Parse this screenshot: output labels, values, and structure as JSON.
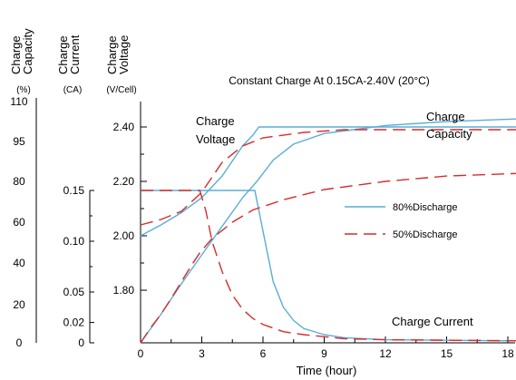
{
  "chart_data": {
    "type": "line",
    "title": "Constant Charge At 0.15CA-2.40V  (20°C)",
    "xlabel": "Time (hour)",
    "x_ticks": [
      0,
      3,
      6,
      9,
      12,
      15,
      18
    ],
    "xlim": [
      0,
      18.5
    ],
    "axes": [
      {
        "id": "capacity",
        "title": "Charge Capacity",
        "unit": "(%)",
        "ticks": [
          0,
          20,
          40,
          60,
          80,
          95,
          110
        ],
        "range": [
          0,
          110
        ]
      },
      {
        "id": "current",
        "title": "Charge Current",
        "unit": "(CA)",
        "ticks": [
          "0",
          "0.02",
          "0.05",
          "0.10",
          "0.15"
        ],
        "tick_values": [
          0,
          0.02,
          0.05,
          0.1,
          0.15
        ],
        "range": [
          0,
          0.15
        ]
      },
      {
        "id": "voltage",
        "title": "Charge Voltage",
        "unit": "(V/Cell)",
        "ticks": [
          "1.80",
          "2.00",
          "2.20",
          "2.40"
        ],
        "tick_values": [
          1.8,
          2.0,
          2.2,
          2.4
        ]
      }
    ],
    "annotations": [
      "Charge Voltage",
      "Charge Capacity",
      "Charge Current"
    ],
    "legend": {
      "position": "right",
      "entries": [
        {
          "label": "80%Discharge",
          "color": "#5aaed6",
          "style": "solid"
        },
        {
          "label": "50%Discharge",
          "color": "#d62b2b",
          "style": "dashed"
        }
      ]
    },
    "series": [
      {
        "legend": 0,
        "quantity": "voltage",
        "points": [
          [
            0,
            2.0
          ],
          [
            1,
            2.04
          ],
          [
            2,
            2.085
          ],
          [
            3,
            2.14
          ],
          [
            4,
            2.22
          ],
          [
            5,
            2.33
          ],
          [
            5.5,
            2.37
          ],
          [
            5.8,
            2.4
          ],
          [
            18.5,
            2.4
          ]
        ]
      },
      {
        "legend": 0,
        "quantity": "capacity",
        "points": [
          [
            0,
            0
          ],
          [
            1,
            15
          ],
          [
            2,
            30
          ],
          [
            3,
            44
          ],
          [
            4,
            58
          ],
          [
            5,
            72
          ],
          [
            5.7,
            80
          ],
          [
            6.5,
            88
          ],
          [
            7.5,
            94
          ],
          [
            9,
            98
          ],
          [
            12,
            101
          ],
          [
            15,
            102.5
          ],
          [
            18.5,
            103.5
          ]
        ]
      },
      {
        "legend": 0,
        "quantity": "current",
        "points": [
          [
            0,
            0.15
          ],
          [
            5.6,
            0.15
          ],
          [
            6,
            0.11
          ],
          [
            6.5,
            0.06
          ],
          [
            7,
            0.035
          ],
          [
            7.5,
            0.022
          ],
          [
            8,
            0.014
          ],
          [
            9,
            0.008
          ],
          [
            10,
            0.005
          ],
          [
            12,
            0.003
          ],
          [
            18.5,
            0.002
          ]
        ]
      },
      {
        "legend": 1,
        "quantity": "voltage",
        "points": [
          [
            0,
            2.04
          ],
          [
            1,
            2.06
          ],
          [
            2,
            2.09
          ],
          [
            3,
            2.16
          ],
          [
            4,
            2.27
          ],
          [
            5,
            2.33
          ],
          [
            6,
            2.36
          ],
          [
            8,
            2.38
          ],
          [
            10,
            2.39
          ],
          [
            18.5,
            2.39
          ]
        ]
      },
      {
        "legend": 1,
        "quantity": "capacity",
        "points": [
          [
            0,
            0
          ],
          [
            0.5,
            8
          ],
          [
            1,
            15
          ],
          [
            1.5,
            23
          ],
          [
            2,
            31
          ],
          [
            2.5,
            39
          ],
          [
            2.9,
            45
          ],
          [
            3.5,
            52
          ],
          [
            4.5,
            60
          ],
          [
            5.5,
            66
          ],
          [
            7,
            71
          ],
          [
            9,
            76
          ],
          [
            12,
            80
          ],
          [
            15,
            82
          ],
          [
            18.5,
            83
          ]
        ]
      },
      {
        "legend": 1,
        "quantity": "current",
        "points": [
          [
            0,
            0.15
          ],
          [
            2.9,
            0.15
          ],
          [
            3.2,
            0.13
          ],
          [
            3.5,
            0.1
          ],
          [
            4,
            0.07
          ],
          [
            4.5,
            0.047
          ],
          [
            5,
            0.033
          ],
          [
            5.5,
            0.024
          ],
          [
            6,
            0.018
          ],
          [
            7,
            0.011
          ],
          [
            8,
            0.008
          ],
          [
            10,
            0.004
          ],
          [
            12,
            0.003
          ],
          [
            18.5,
            0.002
          ]
        ]
      }
    ]
  }
}
